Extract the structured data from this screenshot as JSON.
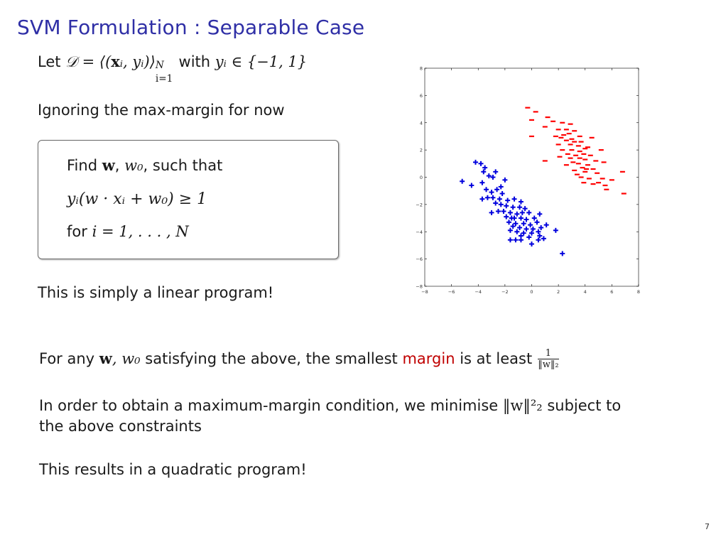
{
  "slide": {
    "title": "SVM Formulation : Separable Case",
    "page_number": "7",
    "let_prefix": "Let ",
    "let_math_D": "𝒟 = ⟨(",
    "let_math_x": "x",
    "let_math_rest": "ᵢ, yᵢ)⟩",
    "let_sup": "N",
    "let_sub": "i=1",
    "let_with": " with ",
    "let_math_y": "yᵢ ∈ {−1, 1}",
    "ignoring": "Ignoring the max-margin for now",
    "box": {
      "find_prefix": "Find ",
      "find_w": "w",
      "find_comma": ", ",
      "find_w0": "w₀",
      "find_suffix": ", such that",
      "constraint": "yᵢ(w · xᵢ + w₀) ≥ 1",
      "for_prefix": "for ",
      "for_math": "i = 1, . . . , N"
    },
    "linear_program": "This is simply a linear program!",
    "for_any_prefix": "For any ",
    "for_any_w": "w",
    "for_any_w0": ", w₀",
    "for_any_mid": " satisfying the above, the smallest ",
    "margin_word": "margin",
    "for_any_end": " is at least",
    "frac_num": "1",
    "frac_den": "‖w‖₂",
    "order_prefix": "In order to obtain a maximum-margin condition, we minimise ",
    "order_math": "‖w‖²₂",
    "order_suffix": " subject to",
    "order_line2": "the above constraints",
    "quadratic": "This results in a quadratic program!"
  },
  "chart_data": {
    "type": "scatter",
    "xlim": [
      -8,
      8
    ],
    "ylim": [
      -8,
      8
    ],
    "xticks": [
      "−8",
      "−6",
      "−4",
      "−2",
      "0",
      "2",
      "4",
      "6",
      "8"
    ],
    "yticks": [
      "8",
      "6",
      "4",
      "2",
      "0",
      "−2",
      "−4",
      "−6",
      "−8"
    ],
    "colors": {
      "red": "#ff0000",
      "blue": "#0000dd"
    },
    "series": [
      {
        "marker": "minus",
        "color": "#ff0000",
        "points": [
          [
            -0.3,
            5.1
          ],
          [
            0.3,
            4.8
          ],
          [
            1.2,
            4.4
          ],
          [
            0.0,
            4.2
          ],
          [
            1.6,
            4.1
          ],
          [
            2.3,
            4.0
          ],
          [
            2.9,
            3.9
          ],
          [
            1.0,
            3.7
          ],
          [
            2.0,
            3.5
          ],
          [
            2.6,
            3.5
          ],
          [
            3.2,
            3.4
          ],
          [
            2.4,
            3.1
          ],
          [
            2.8,
            3.2
          ],
          [
            3.6,
            3.0
          ],
          [
            0.0,
            3.0
          ],
          [
            1.8,
            3.0
          ],
          [
            2.2,
            2.9
          ],
          [
            3.0,
            2.8
          ],
          [
            4.5,
            2.9
          ],
          [
            2.6,
            2.7
          ],
          [
            3.2,
            2.6
          ],
          [
            2.0,
            2.4
          ],
          [
            2.9,
            2.4
          ],
          [
            3.5,
            2.3
          ],
          [
            4.2,
            2.2
          ],
          [
            2.3,
            2.0
          ],
          [
            3.0,
            2.0
          ],
          [
            3.6,
            1.9
          ],
          [
            4.0,
            2.1
          ],
          [
            5.2,
            2.0
          ],
          [
            2.7,
            1.7
          ],
          [
            3.3,
            1.6
          ],
          [
            3.9,
            1.7
          ],
          [
            4.4,
            1.6
          ],
          [
            2.1,
            1.5
          ],
          [
            3.6,
            1.4
          ],
          [
            4.0,
            1.3
          ],
          [
            4.8,
            1.2
          ],
          [
            1.0,
            1.2
          ],
          [
            3.1,
            1.1
          ],
          [
            3.5,
            1.0
          ],
          [
            4.2,
            0.9
          ],
          [
            5.4,
            1.1
          ],
          [
            2.6,
            0.9
          ],
          [
            3.8,
            0.7
          ],
          [
            4.6,
            0.6
          ],
          [
            3.2,
            0.5
          ],
          [
            4.0,
            0.4
          ],
          [
            4.9,
            0.3
          ],
          [
            6.8,
            0.4
          ],
          [
            3.4,
            0.2
          ],
          [
            3.7,
            0.0
          ],
          [
            4.3,
            -0.1
          ],
          [
            5.3,
            -0.1
          ],
          [
            3.9,
            -0.4
          ],
          [
            4.6,
            -0.5
          ],
          [
            5.5,
            -0.6
          ],
          [
            6.0,
            -0.2
          ],
          [
            5.0,
            -0.4
          ],
          [
            5.6,
            -0.9
          ],
          [
            6.9,
            -1.2
          ],
          [
            4.1,
            0.6
          ],
          [
            2.9,
            1.4
          ],
          [
            3.7,
            2.6
          ]
        ]
      },
      {
        "marker": "plus",
        "color": "#0000dd",
        "points": [
          [
            -4.2,
            1.1
          ],
          [
            -3.8,
            1.0
          ],
          [
            -3.5,
            0.7
          ],
          [
            -2.7,
            0.4
          ],
          [
            -3.2,
            0.1
          ],
          [
            -3.6,
            0.4
          ],
          [
            -2.0,
            -0.2
          ],
          [
            -5.2,
            -0.3
          ],
          [
            -4.5,
            -0.6
          ],
          [
            -3.7,
            -0.4
          ],
          [
            -3.4,
            -0.9
          ],
          [
            -3.0,
            -1.1
          ],
          [
            -2.6,
            -0.9
          ],
          [
            -2.2,
            -1.2
          ],
          [
            -3.7,
            -1.6
          ],
          [
            -3.3,
            -1.5
          ],
          [
            -2.9,
            -1.5
          ],
          [
            -2.4,
            -1.6
          ],
          [
            -1.8,
            -1.7
          ],
          [
            -1.3,
            -1.6
          ],
          [
            -0.8,
            -1.8
          ],
          [
            -2.7,
            -1.9
          ],
          [
            -2.3,
            -2.0
          ],
          [
            -1.9,
            -2.1
          ],
          [
            -1.4,
            -2.2
          ],
          [
            -0.9,
            -2.2
          ],
          [
            -0.5,
            -2.3
          ],
          [
            -3.0,
            -2.6
          ],
          [
            -2.5,
            -2.5
          ],
          [
            -2.1,
            -2.5
          ],
          [
            -1.6,
            -2.6
          ],
          [
            -1.1,
            -2.7
          ],
          [
            -0.7,
            -2.6
          ],
          [
            -0.2,
            -2.6
          ],
          [
            -1.9,
            -2.9
          ],
          [
            -1.3,
            -3.0
          ],
          [
            -0.8,
            -3.0
          ],
          [
            -0.4,
            -3.1
          ],
          [
            0.2,
            -3.0
          ],
          [
            0.6,
            -2.7
          ],
          [
            -1.7,
            -3.3
          ],
          [
            -1.2,
            -3.4
          ],
          [
            -0.6,
            -3.4
          ],
          [
            -0.1,
            -3.5
          ],
          [
            0.4,
            -3.3
          ],
          [
            -1.4,
            -3.6
          ],
          [
            -0.9,
            -3.7
          ],
          [
            -0.4,
            -3.8
          ],
          [
            0.1,
            -3.8
          ],
          [
            0.7,
            -3.7
          ],
          [
            1.1,
            -3.5
          ],
          [
            -1.6,
            -3.9
          ],
          [
            -1.1,
            -4.0
          ],
          [
            -0.6,
            -4.1
          ],
          [
            0.0,
            -4.1
          ],
          [
            0.5,
            -4.0
          ],
          [
            -0.8,
            -4.3
          ],
          [
            -0.2,
            -4.4
          ],
          [
            0.6,
            -4.3
          ],
          [
            1.8,
            -3.9
          ],
          [
            -1.6,
            -4.6
          ],
          [
            -1.2,
            -4.6
          ],
          [
            -0.8,
            -4.6
          ],
          [
            0.5,
            -4.6
          ],
          [
            0.0,
            -4.9
          ],
          [
            2.3,
            -5.6
          ],
          [
            -2.9,
            0.0
          ],
          [
            -2.3,
            -0.7
          ],
          [
            -1.5,
            -3.0
          ],
          [
            0.9,
            -4.5
          ]
        ]
      }
    ]
  }
}
